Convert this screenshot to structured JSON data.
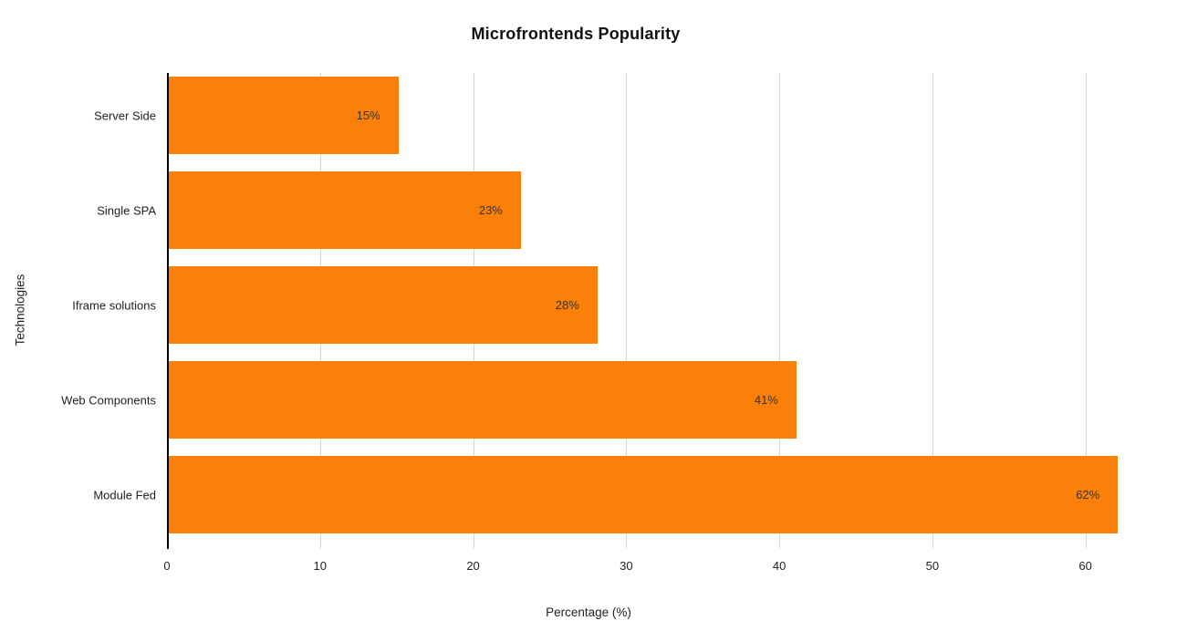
{
  "title": "Microfrontends Popularity",
  "chart_data": {
    "type": "bar",
    "orientation": "horizontal",
    "title": "Microfrontends Popularity",
    "categories": [
      "Server Side",
      "Single SPA",
      "Iframe solutions",
      "Web Components",
      "Module Fed"
    ],
    "values": [
      15,
      23,
      28,
      41,
      62
    ],
    "value_labels": [
      "15%",
      "23%",
      "28%",
      "41%",
      "62%"
    ],
    "xlabel": "Percentage (%)",
    "ylabel": "Technologies",
    "xlim": [
      0,
      63
    ],
    "xticks": [
      0,
      10,
      20,
      30,
      40,
      50,
      60
    ],
    "grid": true,
    "legend": "none",
    "bar_color": "#FA800A",
    "gridline_color": "#D4D4D4",
    "axis_line_color": "#000000",
    "value_label_color": "#333333",
    "text_color": "#222222"
  }
}
